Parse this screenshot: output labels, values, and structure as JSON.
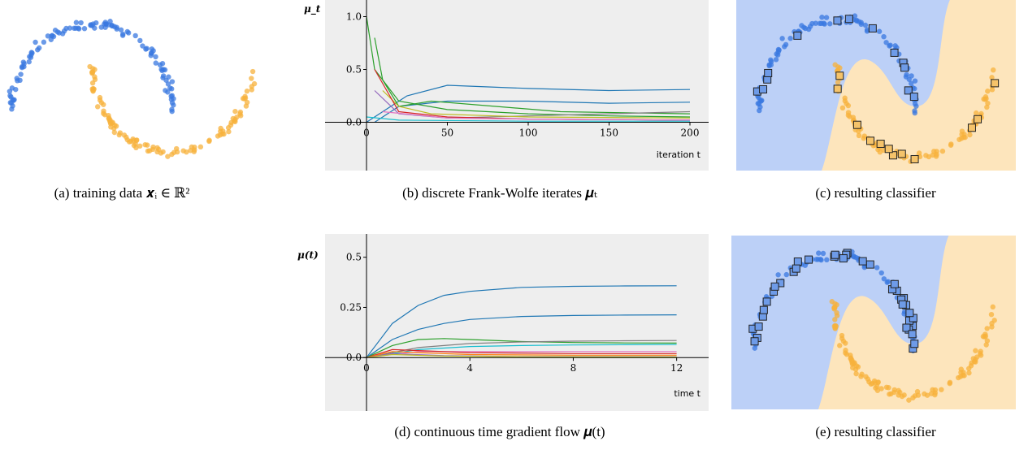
{
  "figure": {
    "captions": {
      "a": "(a) training data 𝒙ᵢ ∈ ℝ²",
      "b": "(b) discrete Frank-Wolfe iterates 𝝁ₜ",
      "c": "(c) resulting classifier",
      "d": "(d) continuous time gradient flow 𝝁(t)",
      "e": "(e) resulting classifier"
    },
    "colors": {
      "class_blue": "#3a78e0",
      "class_orange": "#f7b23c",
      "region_blue": "#bcd0f7",
      "region_orange": "#fde5bc",
      "plot_bg": "#eeeeee"
    }
  },
  "chart_data": [
    {
      "type": "line",
      "panel": "b",
      "ylabel": "μ_t",
      "xlabel": "iteration t",
      "xlim": [
        0,
        200
      ],
      "ylim": [
        -0.45,
        1.05
      ],
      "xticks": [
        0,
        50,
        100,
        150,
        200
      ],
      "yticks": [
        0.0,
        0.5,
        1.0
      ],
      "xtick_labels": [
        "0",
        "50",
        "100",
        "150",
        "200"
      ],
      "ytick_labels": [
        "0.0",
        "0.5",
        "1.0"
      ],
      "series": [
        {
          "color": "#1f77b4",
          "x": [
            0,
            10,
            25,
            50,
            100,
            150,
            200
          ],
          "values": [
            0.0,
            0.1,
            0.25,
            0.35,
            0.32,
            0.3,
            0.31
          ]
        },
        {
          "color": "#1f77b4",
          "x": [
            5,
            20,
            50,
            100,
            150,
            200
          ],
          "values": [
            0.0,
            0.15,
            0.2,
            0.2,
            0.18,
            0.19
          ]
        },
        {
          "color": "#2ca02c",
          "x": [
            5,
            10,
            20,
            40,
            80,
            120,
            200
          ],
          "values": [
            0.8,
            0.4,
            0.15,
            0.2,
            0.15,
            0.1,
            0.08
          ]
        },
        {
          "color": "#2ca02c",
          "x": [
            0,
            5,
            20,
            50,
            100,
            150,
            200
          ],
          "values": [
            1.0,
            0.5,
            0.2,
            0.12,
            0.08,
            0.06,
            0.05
          ]
        },
        {
          "color": "#7f7f7f",
          "x": [
            50,
            100,
            150,
            200
          ],
          "values": [
            0.04,
            0.06,
            0.08,
            0.1
          ]
        },
        {
          "color": "#bcbd22",
          "x": [
            10,
            20,
            40,
            100,
            200
          ],
          "values": [
            0.3,
            0.15,
            0.08,
            0.05,
            0.04
          ]
        },
        {
          "color": "#d62728",
          "x": [
            5,
            20,
            50,
            100,
            200
          ],
          "values": [
            0.5,
            0.1,
            0.05,
            0.03,
            0.02
          ]
        },
        {
          "color": "#9467bd",
          "x": [
            5,
            20,
            50,
            100,
            200
          ],
          "values": [
            0.3,
            0.08,
            0.04,
            0.03,
            0.02
          ]
        },
        {
          "color": "#e377c2",
          "x": [
            10,
            50,
            100,
            200
          ],
          "values": [
            0.1,
            0.04,
            0.03,
            0.02
          ]
        },
        {
          "color": "#17becf",
          "x": [
            0,
            20,
            100,
            200
          ],
          "values": [
            0.05,
            0.02,
            0.01,
            0.01
          ]
        }
      ]
    },
    {
      "type": "line",
      "panel": "d",
      "ylabel": "μ(t)",
      "xlabel": "time t",
      "xlim": [
        0,
        12.2
      ],
      "ylim": [
        -0.25,
        0.6
      ],
      "xticks": [
        0,
        4,
        8,
        12
      ],
      "yticks": [
        0.0,
        0.25,
        0.5
      ],
      "xtick_labels": [
        "0",
        "4",
        "8",
        "12"
      ],
      "ytick_labels": [
        "0.0",
        "0.25",
        "0.5"
      ],
      "series": [
        {
          "color": "#1f77b4",
          "x": [
            0,
            1,
            2,
            3,
            4,
            6,
            8,
            10,
            12
          ],
          "values": [
            0.0,
            0.17,
            0.26,
            0.31,
            0.33,
            0.35,
            0.355,
            0.357,
            0.358
          ]
        },
        {
          "color": "#1f77b4",
          "x": [
            0,
            1,
            2,
            3,
            4,
            6,
            8,
            10,
            12
          ],
          "values": [
            0.0,
            0.09,
            0.14,
            0.17,
            0.19,
            0.205,
            0.21,
            0.212,
            0.213
          ]
        },
        {
          "color": "#2ca02c",
          "x": [
            0,
            1,
            2,
            3,
            4,
            6,
            8,
            10,
            12
          ],
          "values": [
            0.0,
            0.06,
            0.09,
            0.095,
            0.09,
            0.08,
            0.075,
            0.073,
            0.072
          ]
        },
        {
          "color": "#7f7f7f",
          "x": [
            0,
            2,
            4,
            6,
            8,
            10,
            12
          ],
          "values": [
            0.0,
            0.05,
            0.07,
            0.078,
            0.082,
            0.084,
            0.085
          ]
        },
        {
          "color": "#17becf",
          "x": [
            0,
            2,
            4,
            6,
            8,
            10,
            12
          ],
          "values": [
            0.0,
            0.04,
            0.055,
            0.06,
            0.063,
            0.064,
            0.065
          ]
        },
        {
          "color": "#e377c2",
          "x": [
            0,
            2,
            4,
            8,
            12
          ],
          "values": [
            0.0,
            0.03,
            0.03,
            0.03,
            0.03
          ]
        },
        {
          "color": "#d62728",
          "x": [
            0,
            1,
            2,
            4,
            8,
            12
          ],
          "values": [
            0.0,
            0.04,
            0.035,
            0.025,
            0.02,
            0.02
          ]
        },
        {
          "color": "#ff7f0e",
          "x": [
            0,
            1,
            2,
            4,
            8,
            12
          ],
          "values": [
            0.0,
            0.03,
            0.025,
            0.015,
            0.012,
            0.012
          ]
        },
        {
          "color": "#9467bd",
          "x": [
            0,
            1,
            3,
            6,
            12
          ],
          "values": [
            0.0,
            0.02,
            0.01,
            0.005,
            0.004
          ]
        },
        {
          "color": "#bcbd22",
          "x": [
            0,
            1,
            3,
            6,
            12
          ],
          "values": [
            0.0,
            0.015,
            0.008,
            0.004,
            0.003
          ]
        }
      ]
    }
  ]
}
